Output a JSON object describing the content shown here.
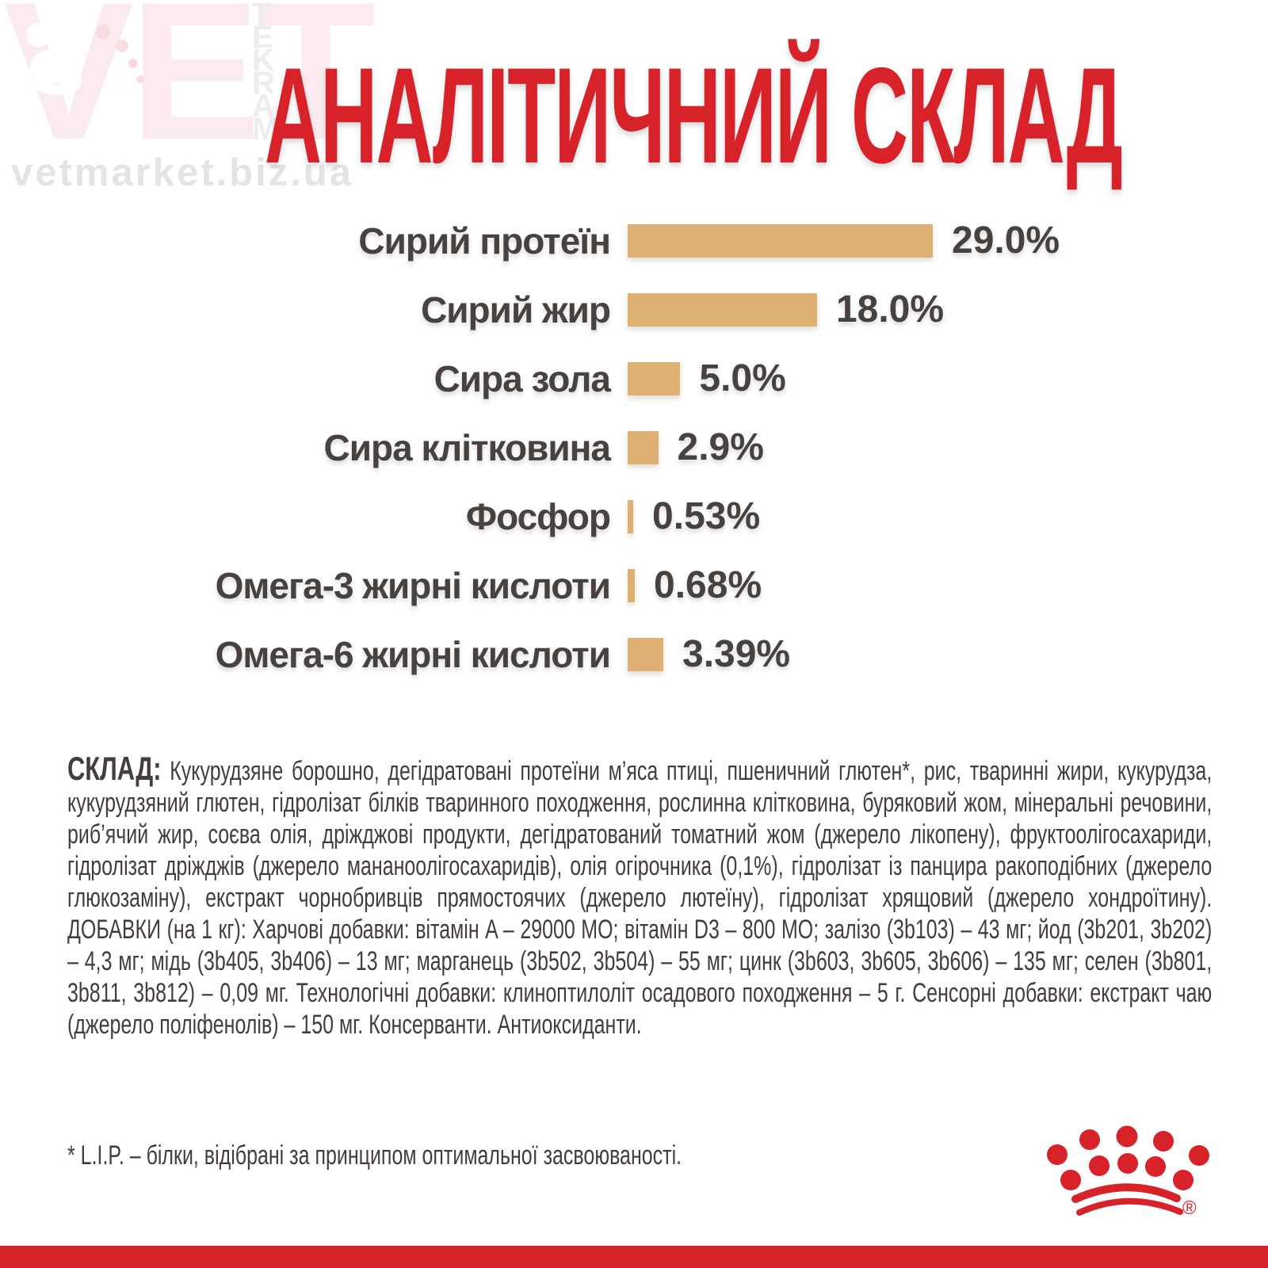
{
  "title": "АНАЛІТИЧНИЙ СКЛАД",
  "watermark": {
    "logo_text": "VET",
    "vertical_letters": [
      "T",
      "E",
      "K",
      "R",
      "A",
      "M"
    ],
    "url": "vetmarket.biz.ua"
  },
  "chart_data": {
    "type": "bar",
    "orientation": "horizontal",
    "title": "АНАЛІТИЧНИЙ СКЛАД",
    "categories": [
      "Сирий протеїн",
      "Сирий жир",
      "Сира зола",
      "Сира клітковина",
      "Фосфор",
      "Омега-3 жирні кислоти",
      "Омега-6 жирні кислоти"
    ],
    "values": [
      29.0,
      18.0,
      5.0,
      2.9,
      0.53,
      0.68,
      3.39
    ],
    "value_labels": [
      "29.0%",
      "18.0%",
      "5.0%",
      "2.9%",
      "0.53%",
      "0.68%",
      "3.39%"
    ],
    "unit": "%",
    "xlim": [
      0,
      29
    ],
    "grid": false,
    "legend": false,
    "bar_color": "#deb072",
    "label_color": "#474140"
  },
  "composition": {
    "label": "СКЛАД:",
    "text": "Кукурудзяне борошно, дегідратовані протеїни м’яса птиці, пшеничний глютен*, рис, тваринні жири, кукурудза, кукурудзяний глютен, гідролізат білків тваринного походження, рослинна клітковина, буряковий жом, мінеральні речовини, риб’ячий жир, соєва олія, дріжджові продукти, дегідратований томатний жом (джерело лікопену), фруктоолігосахариди, гідролізат дріжджів (джерело мананоолігосахаридів), олія огірочника (0,1%), гідролізат із панцира ракоподібних (джерело глюкозаміну), екстракт чорнобривців прямостоячих (джерело лютеїну), гідролізат хрящовий (джерело хондроїтину). ДОБАВКИ (на 1 кг): Харчові добавки: вітамін A – 29000 МО; вітамін D3 – 800 МО; залізо (3b103) – 43 мг; йод (3b201, 3b202) – 4,3 мг; мідь (3b405, 3b406) – 13 мг; марганець (3b502, 3b504) – 55 мг; цинк (3b603, 3b605, 3b606) – 135 мг; селен (3b801, 3b811, 3b812) – 0,09 мг. Технологічні добавки: клиноптилоліт осадового походження – 5 г. Сенсорні добавки: екстракт чаю (джерело поліфенолів) – 150 мг. Консерванти. Антиоксиданти."
  },
  "footnote": "* L.I.P. – білки, відібрані за принципом оптимальної засвоюваності.",
  "brand": {
    "logo": "royal-canin-crown",
    "registered_mark": "®"
  },
  "colors": {
    "accent_red": "#d7222a",
    "bar_tan": "#deb072",
    "text_dark": "#474140",
    "watermark_pink": "#fcebee",
    "watermark_gray": "#ededed"
  }
}
